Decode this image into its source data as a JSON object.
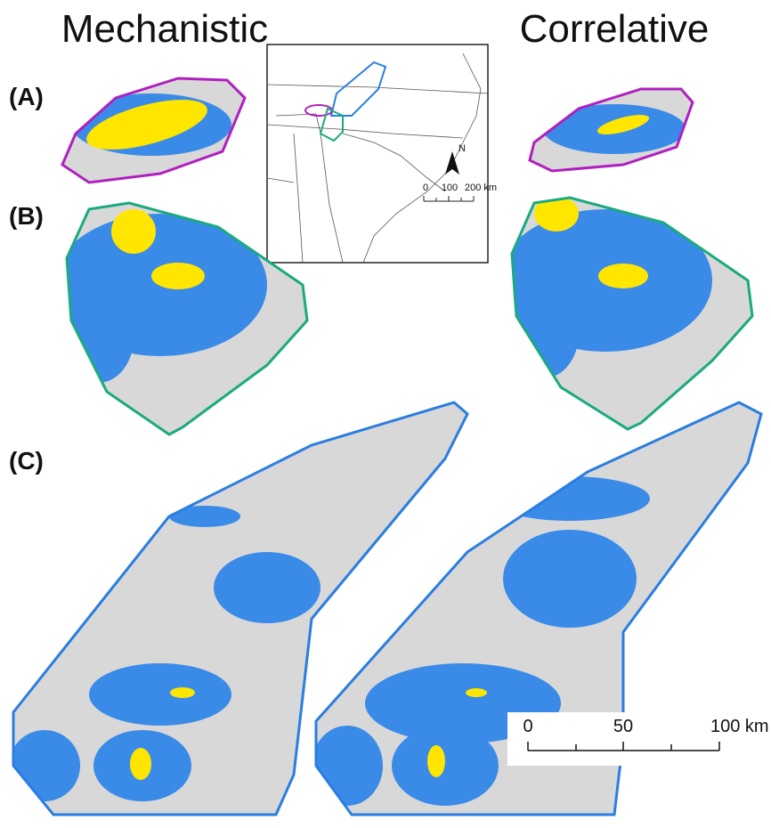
{
  "header": {
    "left_title": "Mechanistic",
    "right_title": "Correlative"
  },
  "panels": [
    "(A)",
    "(B)",
    "(C)"
  ],
  "inset_map": {
    "north": "N",
    "scale_labels": [
      "0",
      "100",
      "200 km"
    ]
  },
  "scale_bar": {
    "labels": [
      "0",
      "50",
      "100 km"
    ]
  }
}
